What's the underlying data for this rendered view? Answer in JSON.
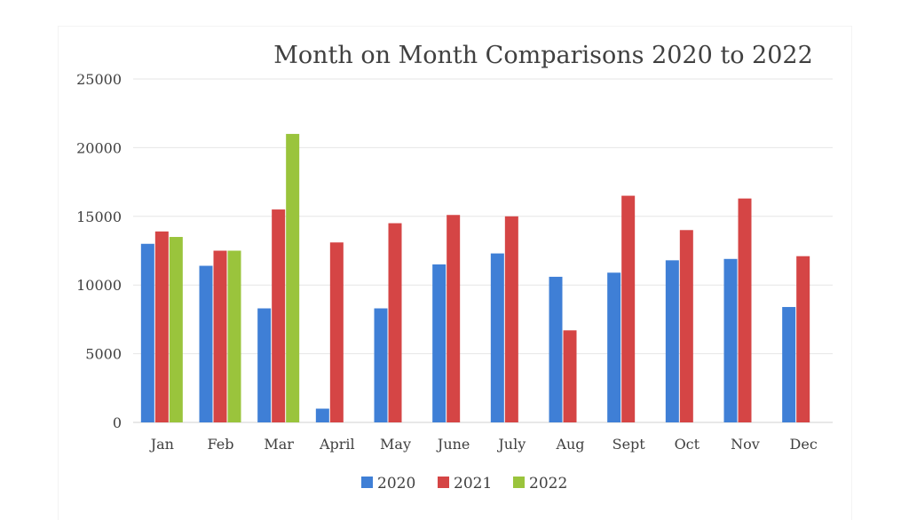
{
  "chart_data": {
    "type": "bar",
    "title": "Month on Month Comparisons 2020 to 2022",
    "xlabel": "",
    "ylabel": "",
    "categories": [
      "Jan",
      "Feb",
      "Mar",
      "April",
      "May",
      "June",
      "July",
      "Aug",
      "Sept",
      "Oct",
      "Nov",
      "Dec"
    ],
    "series": [
      {
        "name": "2020",
        "color": "#3f7fd6",
        "values": [
          13000,
          11400,
          8300,
          1000,
          8300,
          11500,
          12300,
          10600,
          10900,
          11800,
          11900,
          8400
        ]
      },
      {
        "name": "2021",
        "color": "#d54545",
        "values": [
          13900,
          12500,
          15500,
          13100,
          14500,
          15100,
          15000,
          6700,
          16500,
          14000,
          16300,
          12100
        ]
      },
      {
        "name": "2022",
        "color": "#9ac43c",
        "values": [
          13500,
          12500,
          21000,
          null,
          null,
          null,
          null,
          null,
          null,
          null,
          null,
          null
        ]
      }
    ],
    "ylim": [
      0,
      25000
    ],
    "yticks": [
      0,
      5000,
      10000,
      15000,
      20000,
      25000
    ],
    "grid": true,
    "legend_position": "bottom"
  }
}
